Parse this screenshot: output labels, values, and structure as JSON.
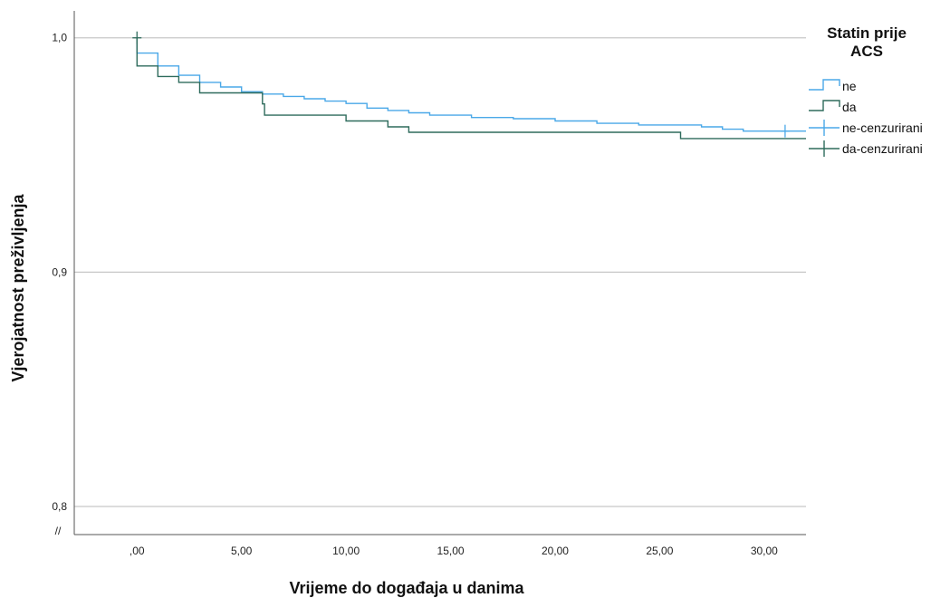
{
  "chart_data": {
    "type": "line",
    "subtype": "kaplan-meier-step",
    "xlabel": "Vrijeme do događaja u danima",
    "ylabel": "Vjerojatnost preživljenja",
    "xlim": [
      -3,
      32
    ],
    "ylim": [
      0.788,
      1.0115
    ],
    "x_ticks": [
      0,
      5,
      10,
      15,
      20,
      25,
      30
    ],
    "x_tick_labels": [
      ",00",
      "5,00",
      "10,00",
      "15,00",
      "20,00",
      "25,00",
      "30,00"
    ],
    "y_ticks": [
      0.8,
      0.9,
      1.0
    ],
    "y_tick_labels": [
      "0,8",
      "0,9",
      "1,0"
    ],
    "axis_break_label": "//",
    "grid": "horizontal",
    "legend": {
      "title_lines": [
        "Statin prije",
        "ACS"
      ],
      "placement": "right",
      "entries": [
        {
          "label": "ne",
          "kind": "step",
          "color": "#4aa8e8"
        },
        {
          "label": "da",
          "kind": "step",
          "color": "#2e6b5c"
        },
        {
          "label": "ne-cenzurirani",
          "kind": "censor",
          "color": "#4aa8e8"
        },
        {
          "label": "da-cenzurirani",
          "kind": "censor",
          "color": "#2e6b5c"
        }
      ]
    },
    "series": [
      {
        "name": "ne",
        "color": "#4aa8e8",
        "points": [
          [
            0,
            1.0
          ],
          [
            0,
            0.9935
          ],
          [
            1,
            0.9935
          ],
          [
            1,
            0.988
          ],
          [
            2,
            0.988
          ],
          [
            2,
            0.984
          ],
          [
            3,
            0.984
          ],
          [
            3,
            0.981
          ],
          [
            4,
            0.981
          ],
          [
            4,
            0.979
          ],
          [
            5,
            0.979
          ],
          [
            5,
            0.977
          ],
          [
            6,
            0.977
          ],
          [
            6,
            0.976
          ],
          [
            7,
            0.976
          ],
          [
            7,
            0.975
          ],
          [
            8,
            0.975
          ],
          [
            8,
            0.974
          ],
          [
            9,
            0.974
          ],
          [
            9,
            0.973
          ],
          [
            10,
            0.973
          ],
          [
            10,
            0.972
          ],
          [
            11,
            0.972
          ],
          [
            11,
            0.97
          ],
          [
            12,
            0.97
          ],
          [
            12,
            0.969
          ],
          [
            13,
            0.969
          ],
          [
            13,
            0.968
          ],
          [
            14,
            0.968
          ],
          [
            14,
            0.967
          ],
          [
            16,
            0.967
          ],
          [
            16,
            0.966
          ],
          [
            18,
            0.966
          ],
          [
            18,
            0.9655
          ],
          [
            20,
            0.9655
          ],
          [
            20,
            0.9645
          ],
          [
            22,
            0.9645
          ],
          [
            22,
            0.9635
          ],
          [
            24,
            0.9635
          ],
          [
            24,
            0.9628
          ],
          [
            27,
            0.9628
          ],
          [
            27,
            0.962
          ],
          [
            28,
            0.962
          ],
          [
            28,
            0.961
          ],
          [
            29,
            0.961
          ],
          [
            29,
            0.9602
          ],
          [
            32,
            0.9602
          ]
        ],
        "censored": [
          [
            31,
            0.9602
          ]
        ]
      },
      {
        "name": "da",
        "color": "#2e6b5c",
        "points": [
          [
            0,
            1.0
          ],
          [
            0,
            0.988
          ],
          [
            1,
            0.988
          ],
          [
            1,
            0.9835
          ],
          [
            2,
            0.9835
          ],
          [
            2,
            0.981
          ],
          [
            3,
            0.981
          ],
          [
            3,
            0.9765
          ],
          [
            6,
            0.9765
          ],
          [
            6,
            0.9718
          ],
          [
            6.1,
            0.9718
          ],
          [
            6.1,
            0.967
          ],
          [
            10,
            0.967
          ],
          [
            10,
            0.9645
          ],
          [
            12,
            0.9645
          ],
          [
            12,
            0.962
          ],
          [
            13,
            0.962
          ],
          [
            13,
            0.9597
          ],
          [
            26,
            0.9597
          ],
          [
            26,
            0.957
          ],
          [
            32,
            0.957
          ]
        ],
        "censored": [
          [
            0,
            1.0
          ]
        ]
      }
    ]
  }
}
